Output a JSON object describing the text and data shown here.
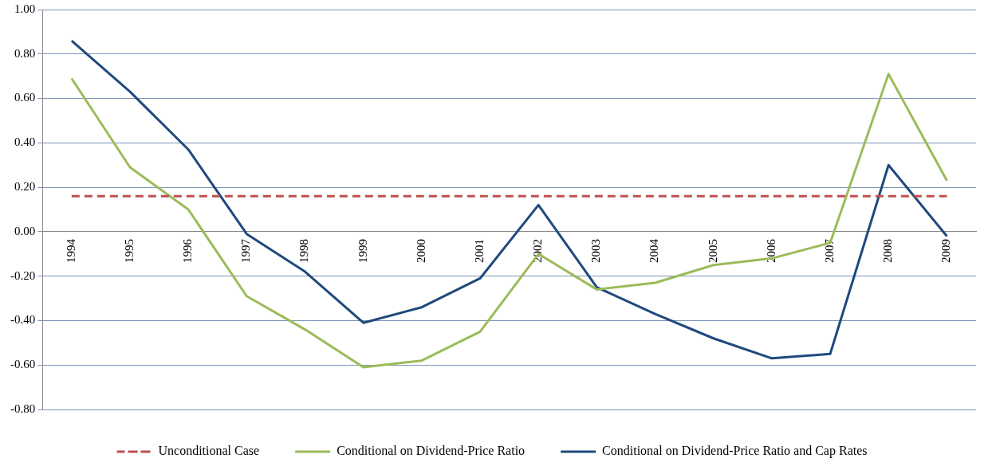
{
  "chart_data": {
    "type": "line",
    "categories": [
      "1994",
      "1995",
      "1996",
      "1997",
      "1998",
      "1999",
      "2000",
      "2001",
      "2002",
      "2003",
      "2004",
      "2005",
      "2006",
      "2007",
      "2008",
      "2009"
    ],
    "series": [
      {
        "name": "Unconditional Case",
        "color": "#c0504d",
        "line_style": "dashed",
        "values": [
          0.16,
          0.16,
          0.16,
          0.16,
          0.16,
          0.16,
          0.16,
          0.16,
          0.16,
          0.16,
          0.16,
          0.16,
          0.16,
          0.16,
          0.16,
          0.16
        ]
      },
      {
        "name": "Conditional on Dividend-Price Ratio",
        "color": "#9bbb59",
        "line_style": "solid",
        "values": [
          0.69,
          0.29,
          0.1,
          -0.29,
          -0.44,
          -0.61,
          -0.58,
          -0.45,
          -0.1,
          -0.26,
          -0.23,
          -0.15,
          -0.12,
          -0.05,
          0.71,
          0.23
        ]
      },
      {
        "name": "Conditional on Dividend-Price Ratio and Cap Rates",
        "color": "#1f497d",
        "line_style": "solid",
        "values": [
          0.86,
          0.63,
          0.37,
          -0.01,
          -0.18,
          -0.41,
          -0.34,
          -0.21,
          0.12,
          -0.25,
          -0.37,
          -0.48,
          -0.57,
          -0.55,
          0.3,
          -0.02
        ]
      }
    ],
    "ylim": [
      -0.8,
      1.0
    ],
    "yticks": [
      {
        "value": -0.8,
        "label": "-0.80"
      },
      {
        "value": -0.6,
        "label": "-0.60"
      },
      {
        "value": -0.4,
        "label": "-0.40"
      },
      {
        "value": -0.2,
        "label": "-0.20"
      },
      {
        "value": 0,
        "label": "0.00"
      },
      {
        "value": 0.2,
        "label": "0.20"
      },
      {
        "value": 0.4,
        "label": "0.40"
      },
      {
        "value": 0.6,
        "label": "0.60"
      },
      {
        "value": 0.8,
        "label": "0.80"
      },
      {
        "value": 1.0,
        "label": "1.00"
      }
    ],
    "grid": "y",
    "legend": "bottom",
    "marker": "none"
  }
}
